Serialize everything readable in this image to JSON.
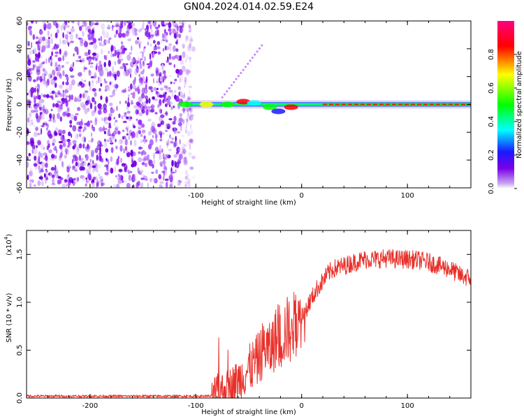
{
  "title": "GN04.2024.014.02.59.E24",
  "chart_data": [
    {
      "type": "heatmap",
      "xlabel": "Height of straight line (km)",
      "ylabel": "Frequency (Hz)",
      "xlim": [
        -260,
        160
      ],
      "ylim": [
        -60,
        60
      ],
      "x_ticks": [
        "-200",
        "-100",
        "0",
        "100"
      ],
      "y_ticks": [
        "-60",
        "-40",
        "-20",
        "0",
        "20",
        "40",
        "60"
      ],
      "colorbar": {
        "label": "Normalized spectral amplitude",
        "range": [
          0,
          1
        ],
        "ticks": [
          "0.0",
          "0.2",
          "0.4",
          "0.6",
          "0.8"
        ],
        "colormap": [
          "#ffffff",
          "#c9a8f2",
          "#7a00e6",
          "#1a1aff",
          "#00ffff",
          "#00ff00",
          "#ffff00",
          "#ff0000",
          "#ff0080"
        ]
      },
      "features": {
        "noise_region_x": [
          -260,
          -110
        ],
        "signal_band_x": [
          -110,
          160
        ],
        "signal_band_center_hz": 0
      }
    },
    {
      "type": "line",
      "xlabel": "Height of straight line (km)",
      "ylabel": "SNR (10 * v/v)",
      "multiplier_label": "(x10",
      "multiplier_exponent": "4",
      "xlim": [
        -260,
        160
      ],
      "ylim": [
        0,
        1.75
      ],
      "x_ticks": [
        "-200",
        "-100",
        "0",
        "100"
      ],
      "y_ticks": [
        "0.0",
        "0.5",
        "1.0",
        "1.5"
      ],
      "color": "#e8302a",
      "series": [
        {
          "x": [
            -260,
            -200,
            -150,
            -100,
            -85,
            -80,
            -70,
            -60,
            -50,
            -40,
            -35,
            -30,
            -25,
            -20,
            -15,
            -10,
            -5,
            0,
            5,
            10,
            15,
            20,
            25,
            30,
            40,
            50,
            60,
            70,
            80,
            90,
            100,
            110,
            120,
            130,
            140,
            150,
            160
          ],
          "values": [
            0.02,
            0.02,
            0.02,
            0.02,
            0.02,
            0.06,
            0.1,
            0.18,
            0.3,
            0.42,
            0.55,
            0.48,
            0.62,
            0.6,
            0.72,
            0.7,
            0.8,
            0.85,
            0.95,
            1.05,
            1.15,
            1.22,
            1.3,
            1.35,
            1.38,
            1.42,
            1.45,
            1.45,
            1.46,
            1.45,
            1.45,
            1.44,
            1.42,
            1.38,
            1.35,
            1.28,
            1.25
          ]
        }
      ]
    }
  ]
}
